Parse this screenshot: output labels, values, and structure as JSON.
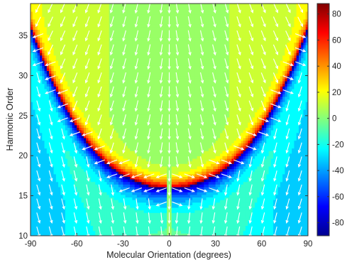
{
  "chart_data": {
    "type": "heatmap",
    "title": "",
    "xlabel": "Molecular Orientation (degrees)",
    "ylabel": "Harmonic Order",
    "xlim": [
      -90,
      90
    ],
    "ylim": [
      10,
      39
    ],
    "x_ticks": [
      -90,
      -60,
      -30,
      0,
      30,
      60,
      90
    ],
    "y_ticks": [
      10,
      15,
      20,
      25,
      30,
      35
    ],
    "grid": false,
    "colormap": "jet",
    "colorbar": {
      "range": [
        -90,
        88
      ],
      "ticks": [
        80,
        60,
        40,
        20,
        0,
        -20,
        -40,
        -60,
        -80
      ]
    },
    "boundary_curve": {
      "description_of_values": "harmonic order of the sharp phase jump vs molecular orientation",
      "x": [
        0,
        10,
        20,
        30,
        40,
        50,
        60,
        70,
        80,
        86,
        90
      ],
      "y": [
        16.0,
        16.1,
        16.7,
        17.6,
        18.9,
        20.9,
        23.5,
        27.0,
        31.0,
        34.0,
        36.0
      ]
    },
    "overlay": {
      "type": "quiver",
      "color": "#ffffff",
      "x_positions": [
        -85,
        -77,
        -69,
        -61,
        -53,
        -45,
        -37,
        -29,
        -21,
        -13,
        -5,
        0,
        5,
        13,
        21,
        29,
        37,
        45,
        53,
        61,
        69,
        77,
        85
      ]
    }
  }
}
